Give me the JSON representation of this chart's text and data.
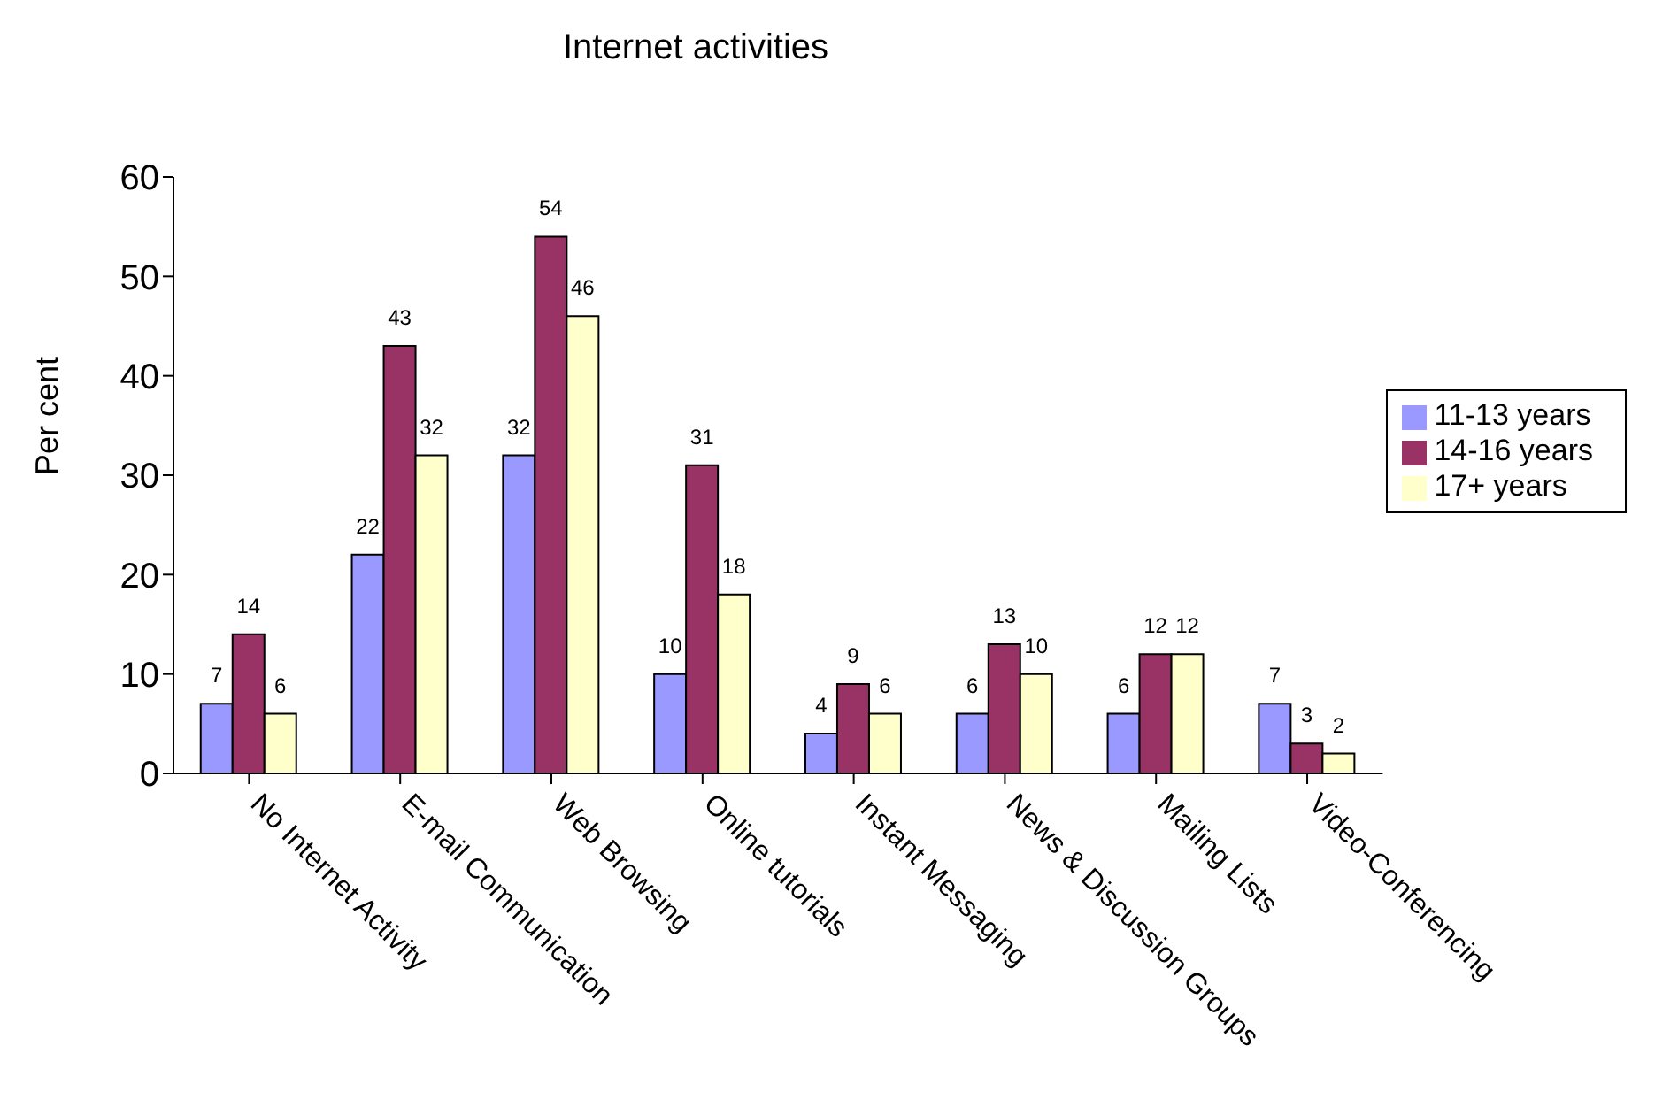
{
  "chart_data": {
    "type": "bar",
    "title": "Internet activities",
    "ylabel": "Per cent",
    "categories": [
      "No Internet Activity",
      "E-mail Communication",
      "Web Browsing",
      "Online tutorials",
      "Instant Messaging",
      "News & Discussion Groups",
      "Mailing Lists",
      "Video-Conferencing"
    ],
    "series": [
      {
        "name": "11-13 years",
        "color": "#9999ff",
        "values": [
          7,
          22,
          32,
          10,
          4,
          6,
          6,
          7
        ]
      },
      {
        "name": "14-16 years",
        "color": "#993366",
        "values": [
          14,
          43,
          54,
          31,
          9,
          13,
          12,
          3
        ]
      },
      {
        "name": "17+ years",
        "color": "#ffffcc",
        "values": [
          6,
          32,
          46,
          18,
          6,
          10,
          12,
          2
        ]
      }
    ],
    "ylim": [
      0,
      60
    ],
    "yticks": [
      0,
      10,
      20,
      30,
      40,
      50,
      60
    ],
    "grid": false,
    "legend": "right",
    "data_labels": true
  }
}
